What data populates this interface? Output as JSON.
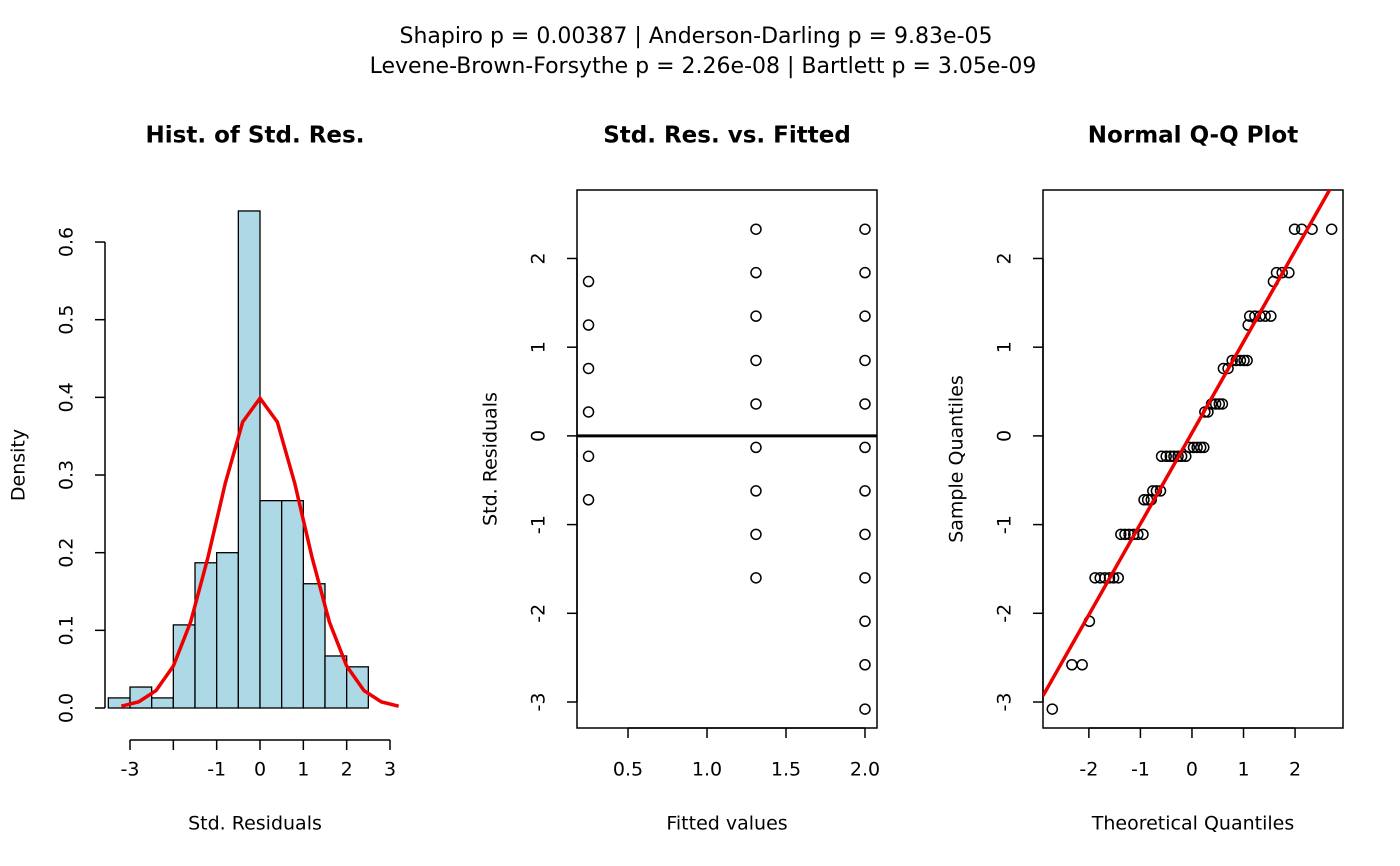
{
  "header": {
    "lines": [
      "Shapiro p = 0.00387 | Anderson-Darling p = 9.83e-05",
      "Levene-Brown-Forsythe p = 2.26e-08 | Bartlett p = 3.05e-09"
    ]
  },
  "chart_data": [
    {
      "type": "histogram",
      "title": "Hist. of Std. Res.",
      "x_label": "Std. Residuals",
      "y_label": "Density",
      "bins": [
        -3.5,
        -3,
        -2.5,
        -2,
        -1.5,
        -1,
        -0.5,
        0,
        0.5,
        1,
        1.5,
        2,
        2.5
      ],
      "values": [
        0.013,
        0.027,
        0.013,
        0.107,
        0.187,
        0.2,
        0.64,
        0.267,
        0.267,
        0.16,
        0.067,
        0.053
      ],
      "color": "#add8e6",
      "curve": {
        "color": "#ee0000",
        "x": [
          -3.2,
          -2.8,
          -2.4,
          -2.0,
          -1.6,
          -1.2,
          -0.8,
          -0.4,
          0,
          0.4,
          0.8,
          1.2,
          1.6,
          2.0,
          2.4,
          2.8,
          3.2
        ],
        "values": [
          0.0024,
          0.0079,
          0.0224,
          0.054,
          0.1109,
          0.1942,
          0.2897,
          0.3683,
          0.3989,
          0.3683,
          0.2897,
          0.1942,
          0.1109,
          0.054,
          0.0224,
          0.0079,
          0.0024
        ]
      },
      "xlim": [
        -3.577,
        3.346
      ],
      "ylim": [
        -0.0412,
        0.667
      ],
      "xticks": [
        -3,
        {
          "value": -2,
          "label": null
        },
        -1,
        0,
        1,
        2,
        3
      ],
      "yticks": [
        {
          "value": 0,
          "label": "0.0"
        },
        0.1,
        0.2,
        0.3,
        0.4,
        0.5,
        0.6
      ]
    },
    {
      "type": "scatter",
      "title": "Std. Res. vs. Fitted",
      "x_label": "Fitted values",
      "y_label": "Std. Residuals",
      "x": [
        0.25,
        0.25,
        0.25,
        0.25,
        0.25,
        0.25,
        1.31,
        1.31,
        1.31,
        1.31,
        1.31,
        1.31,
        1.31,
        1.31,
        1.31,
        2.0,
        2.0,
        2.0,
        2.0,
        2.0,
        2.0,
        2.0,
        2.0,
        2.0,
        2.0,
        2.0,
        2.0
      ],
      "values": [
        1.74,
        1.25,
        0.76,
        0.27,
        -0.23,
        -0.72,
        2.33,
        1.84,
        1.35,
        0.85,
        0.36,
        -0.13,
        -0.62,
        -1.11,
        -1.6,
        2.33,
        1.84,
        1.35,
        0.85,
        0.36,
        -0.13,
        -0.62,
        -1.11,
        -1.6,
        -2.09,
        -2.58,
        -3.08
      ],
      "hline": 0,
      "box": true,
      "xlim": [
        0.177,
        2.076
      ],
      "ylim": [
        -3.293,
        2.772
      ],
      "xticks": [
        0.5,
        {
          "value": 1,
          "label": "1.0"
        },
        1.5,
        {
          "value": 2,
          "label": "2.0"
        }
      ],
      "yticks": [
        -3,
        -2,
        -1,
        0,
        1,
        2
      ]
    },
    {
      "type": "scatter",
      "title": "Normal Q-Q Plot",
      "x_label": "Theoretical Quantiles",
      "y_label": "Sample Quantiles",
      "x": [
        -2.71,
        -2.33,
        -2.13,
        -1.99,
        -1.88,
        -1.78,
        -1.69,
        -1.6,
        -1.52,
        -1.43,
        -1.38,
        -1.3,
        -1.22,
        -1.13,
        -1.05,
        -0.95,
        -0.93,
        -0.86,
        -0.79,
        -0.76,
        -0.69,
        -0.61,
        -0.59,
        -0.5,
        -0.42,
        -0.35,
        -0.27,
        -0.2,
        -0.12,
        -0.05,
        0.03,
        0.1,
        0.17,
        0.23,
        0.25,
        0.31,
        0.38,
        0.46,
        0.53,
        0.59,
        0.61,
        0.7,
        0.78,
        0.86,
        0.94,
        1.01,
        1.07,
        1.09,
        1.12,
        1.22,
        1.32,
        1.42,
        1.53,
        1.58,
        1.64,
        1.75,
        1.88,
        1.99,
        2.13,
        2.33,
        2.71
      ],
      "values": [
        -3.08,
        -2.58,
        -2.58,
        -2.09,
        -1.6,
        -1.6,
        -1.6,
        -1.6,
        -1.6,
        -1.6,
        -1.11,
        -1.11,
        -1.11,
        -1.11,
        -1.11,
        -1.11,
        -0.72,
        -0.72,
        -0.72,
        -0.62,
        -0.62,
        -0.62,
        -0.23,
        -0.23,
        -0.23,
        -0.23,
        -0.23,
        -0.23,
        -0.23,
        -0.13,
        -0.13,
        -0.13,
        -0.13,
        -0.13,
        0.27,
        0.27,
        0.36,
        0.36,
        0.36,
        0.36,
        0.76,
        0.76,
        0.85,
        0.85,
        0.85,
        0.85,
        0.85,
        1.25,
        1.35,
        1.35,
        1.35,
        1.35,
        1.35,
        1.74,
        1.84,
        1.84,
        1.84,
        2.33,
        2.33,
        2.33,
        2.33
      ],
      "reference_line": {
        "color": "#ee0000",
        "x": [
          -2.89,
          2.93
        ],
        "values": [
          -2.93,
          3.04
        ]
      },
      "box": true,
      "xlim": [
        -2.89,
        2.93
      ],
      "ylim": [
        -3.293,
        2.772
      ],
      "xticks": [
        -2,
        -1,
        0,
        1,
        2
      ],
      "yticks": [
        -3,
        -2,
        -1,
        0,
        1,
        2
      ]
    }
  ]
}
